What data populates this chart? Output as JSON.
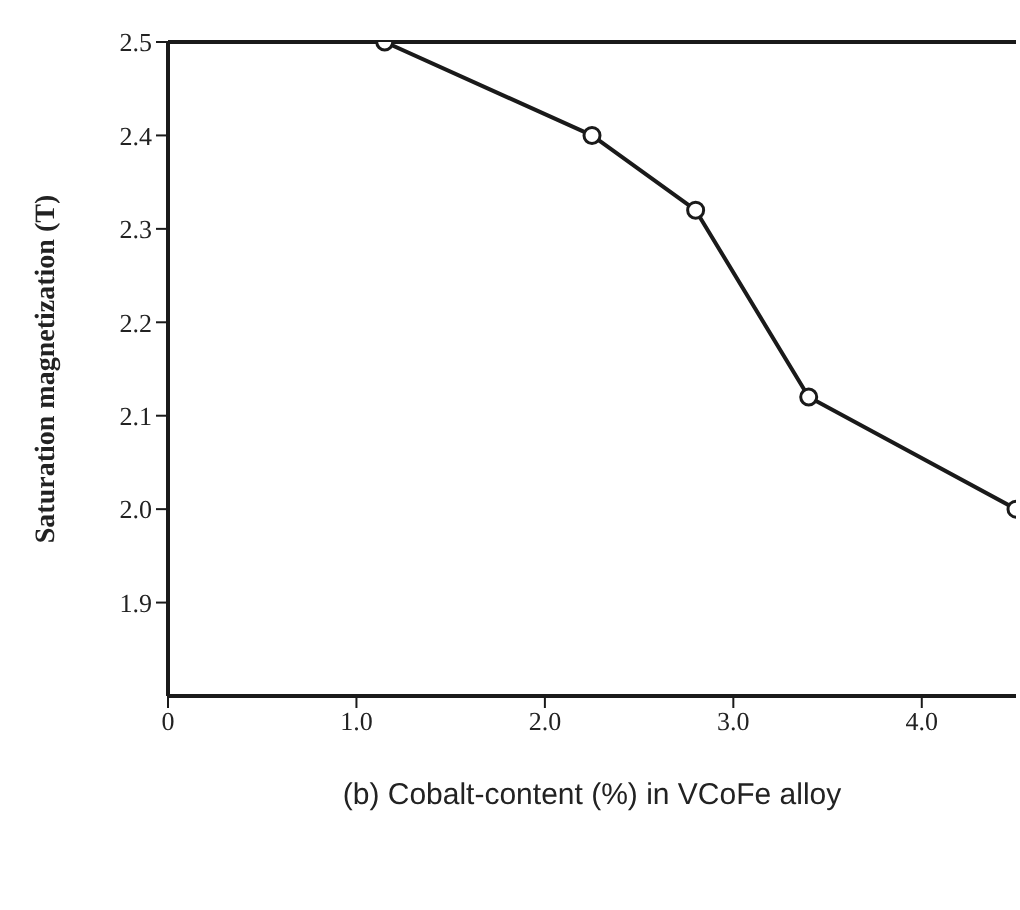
{
  "chart_data": {
    "type": "line",
    "xlabel": "(b)  Cobalt-content (%) in VCoFe alloy",
    "ylabel": "Saturation magnetization (T)",
    "x": [
      1.15,
      2.25,
      2.8,
      3.4,
      4.5
    ],
    "series": [
      {
        "color": "#1a1a1a",
        "values": [
          2.5,
          2.4,
          2.32,
          2.12,
          2.0
        ]
      }
    ],
    "xlim": [
      0,
      4.5
    ],
    "xticks": [
      {
        "value": 0,
        "label": "0"
      },
      {
        "value": 1,
        "label": "1.0"
      },
      {
        "value": 2,
        "label": "2.0"
      },
      {
        "value": 3,
        "label": "3.0"
      },
      {
        "value": 4,
        "label": "4.0"
      }
    ],
    "ylim": [
      1.8,
      2.5
    ],
    "yticks": [
      {
        "value": 1.9,
        "label": "1.9"
      },
      {
        "value": 2,
        "label": "2.0"
      },
      {
        "value": 2.1,
        "label": "2.1"
      },
      {
        "value": 2.2,
        "label": "2.2"
      },
      {
        "value": 2.3,
        "label": "2.3"
      },
      {
        "value": 2.4,
        "label": "2.4"
      },
      {
        "value": 2.5,
        "label": "2.5"
      }
    ],
    "marker": "circle",
    "line_style": "solid",
    "grid": false,
    "legend": false
  }
}
